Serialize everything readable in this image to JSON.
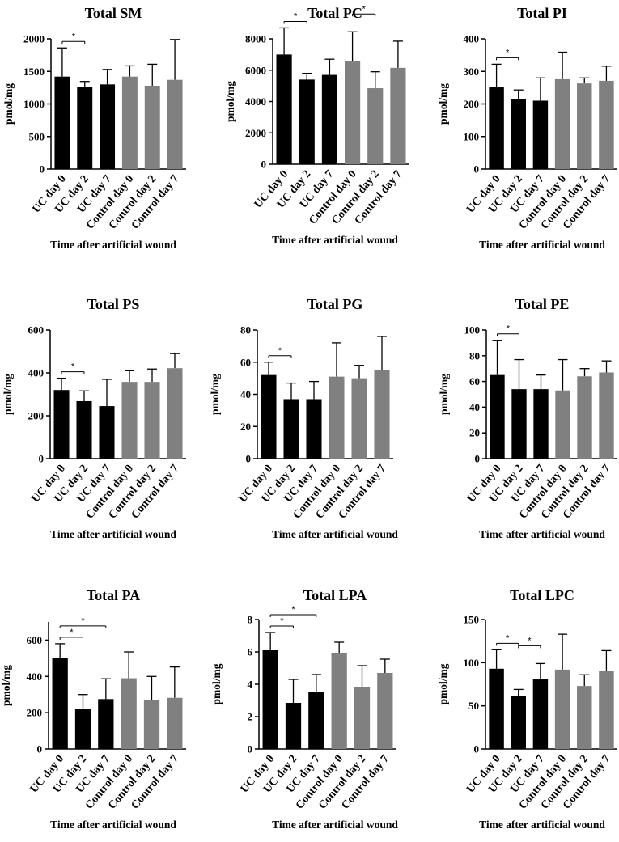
{
  "colors": {
    "uc": "#000000",
    "control": "#808080",
    "axis": "#000000",
    "error": "#000000"
  },
  "chart_data": [
    {
      "type": "bar",
      "title": "Total SM",
      "ylabel": "pmol/mg",
      "xlabel": "Time after artificial wound",
      "categories": [
        "UC day 0",
        "UC day 2",
        "UC day 7",
        "Control day 0",
        "Control day 2",
        "Control day 7"
      ],
      "values": [
        1420,
        1265,
        1300,
        1420,
        1280,
        1370
      ],
      "errors": [
        440,
        80,
        230,
        165,
        330,
        620
      ],
      "ylim": [
        0,
        2000
      ],
      "yticks": [
        0,
        500,
        1000,
        1500,
        2000
      ],
      "significance": [
        {
          "from": 0,
          "to": 1,
          "label": "*"
        }
      ]
    },
    {
      "type": "bar",
      "title": "Total PC",
      "ylabel": "pmol/mg",
      "xlabel": "Time after artificial wound",
      "categories": [
        "UC day 0",
        "UC day 2",
        "UC day 7",
        "Control day 0",
        "Control day 2",
        "Control day 7"
      ],
      "values": [
        7000,
        5400,
        5700,
        6600,
        4850,
        6150
      ],
      "errors": [
        1700,
        400,
        1000,
        1850,
        1050,
        1700
      ],
      "ylim": [
        0,
        8000
      ],
      "yticks": [
        0,
        2000,
        4000,
        6000,
        8000
      ],
      "significance": [
        {
          "from": 0,
          "to": 1,
          "label": "*"
        },
        {
          "from": 3,
          "to": 4,
          "label": "*"
        }
      ]
    },
    {
      "type": "bar",
      "title": "Total PI",
      "ylabel": "pmol/mg",
      "xlabel": "Time after artificial wound",
      "categories": [
        "UC day 0",
        "UC day 2",
        "UC day 7",
        "Control day 0",
        "Control day 2",
        "Control day 7"
      ],
      "values": [
        252,
        215,
        210,
        276,
        263,
        271
      ],
      "errors": [
        70,
        28,
        70,
        83,
        17,
        45
      ],
      "ylim": [
        0,
        400
      ],
      "yticks": [
        0,
        100,
        200,
        300,
        400
      ],
      "significance": [
        {
          "from": 0,
          "to": 1,
          "label": "*"
        }
      ]
    },
    {
      "type": "bar",
      "title": "Total PS",
      "ylabel": "pmol/mg",
      "xlabel": "Time after artificial wound",
      "categories": [
        "UC day 0",
        "UC day 2",
        "UC day 7",
        "Control day 0",
        "Control day 2",
        "Control day 7"
      ],
      "values": [
        320,
        268,
        245,
        358,
        358,
        422
      ],
      "errors": [
        55,
        48,
        125,
        52,
        60,
        68
      ],
      "ylim": [
        0,
        600
      ],
      "yticks": [
        0,
        200,
        400,
        600
      ],
      "significance": [
        {
          "from": 0,
          "to": 1,
          "label": "*"
        }
      ]
    },
    {
      "type": "bar",
      "title": "Total PG",
      "ylabel": "pmol/mg",
      "xlabel": "Time after artificial wound",
      "categories": [
        "UC day 0",
        "UC day 2",
        "UC day 7",
        "Control day 0",
        "Control day 2",
        "Control day 7"
      ],
      "values": [
        52,
        37,
        37,
        51,
        50,
        55
      ],
      "errors": [
        8,
        10,
        11,
        21,
        8,
        21
      ],
      "ylim": [
        0,
        80
      ],
      "yticks": [
        0,
        20,
        40,
        60,
        80
      ],
      "significance": [
        {
          "from": 0,
          "to": 1,
          "label": "*"
        }
      ]
    },
    {
      "type": "bar",
      "title": "Total PE",
      "ylabel": "pmol/mg",
      "xlabel": "Time after artificial wound",
      "categories": [
        "UC day 0",
        "UC day 2",
        "UC day 7",
        "Control day 0",
        "Control day 2",
        "Control day 7"
      ],
      "values": [
        65,
        54,
        54,
        53,
        64,
        67
      ],
      "errors": [
        27,
        23,
        11,
        24,
        6,
        9
      ],
      "ylim": [
        0,
        100
      ],
      "yticks": [
        0,
        20,
        40,
        60,
        80,
        100
      ],
      "significance": [
        {
          "from": 0,
          "to": 1,
          "label": "*"
        }
      ]
    },
    {
      "type": "bar",
      "title": "Total PA",
      "ylabel": "pmol/mg",
      "xlabel": "Time after artificial wound",
      "categories": [
        "UC day 0",
        "UC day 2",
        "UC day 7",
        "Control day 0",
        "Control day 2",
        "Control day 7"
      ],
      "values": [
        500,
        222,
        275,
        390,
        272,
        282
      ],
      "errors": [
        80,
        78,
        112,
        145,
        128,
        170
      ],
      "ylim": [
        0,
        700
      ],
      "yticks": [
        0,
        200,
        400,
        600
      ],
      "significance": [
        {
          "from": 0,
          "to": 1,
          "label": "*"
        },
        {
          "from": 0,
          "to": 2,
          "label": "*"
        }
      ]
    },
    {
      "type": "bar",
      "title": "Total LPA",
      "ylabel": "pmol/mg",
      "xlabel": "Time after artificial wound",
      "categories": [
        "UC day 0",
        "UC day 2",
        "UC day 7",
        "Control day 0",
        "Control day 2",
        "Control day 7"
      ],
      "values": [
        6.1,
        2.85,
        3.5,
        5.95,
        3.85,
        4.7
      ],
      "errors": [
        1.1,
        1.45,
        1.1,
        0.65,
        1.3,
        0.85
      ],
      "ylim": [
        0,
        8
      ],
      "yticks": [
        0,
        2,
        4,
        6,
        8
      ],
      "significance": [
        {
          "from": 0,
          "to": 1,
          "label": "*"
        },
        {
          "from": 0,
          "to": 2,
          "label": "*"
        }
      ]
    },
    {
      "type": "bar",
      "title": "Total LPC",
      "ylabel": "pmol/mg",
      "xlabel": "Time after artificial wound",
      "categories": [
        "UC day 0",
        "UC day 2",
        "UC day 7",
        "Control day 0",
        "Control day 2",
        "Control day 7"
      ],
      "values": [
        93,
        61,
        81,
        92,
        73,
        90
      ],
      "errors": [
        22,
        8,
        18,
        41,
        13,
        24
      ],
      "ylim": [
        0,
        150
      ],
      "yticks": [
        0,
        50,
        100,
        150
      ],
      "significance": [
        {
          "from": 0,
          "to": 1,
          "label": "*"
        },
        {
          "from": 1,
          "to": 2,
          "label": "*"
        }
      ]
    }
  ]
}
